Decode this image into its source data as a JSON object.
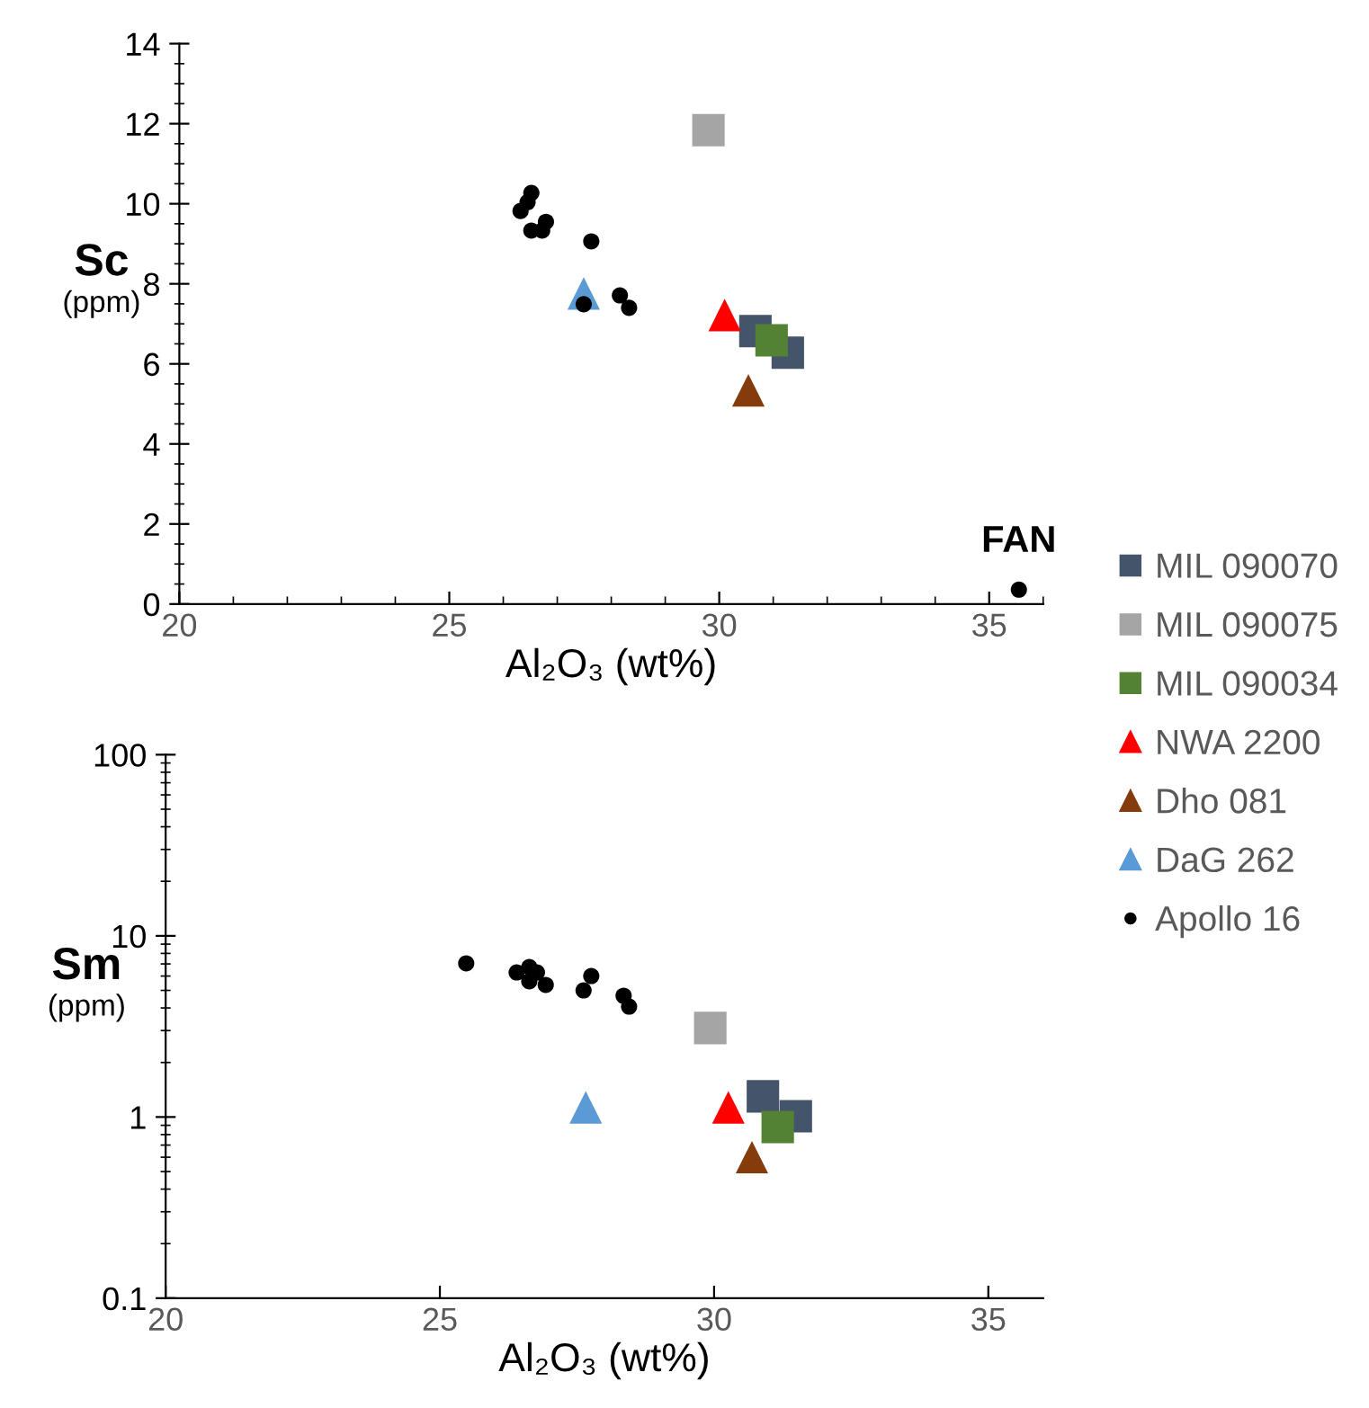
{
  "chart_data": [
    {
      "type": "scatter",
      "xlabel": "Al₂O₃ (wt%)",
      "ylabel": "Sc\n(ppm)",
      "xlim": [
        20,
        36
      ],
      "xticks": [
        20,
        25,
        30,
        35
      ],
      "ylim": [
        0,
        14
      ],
      "yticks": [
        0,
        2,
        4,
        6,
        8,
        10,
        12,
        14
      ],
      "grid": false,
      "legend": "right",
      "annotations": [
        {
          "text": "FAN",
          "x": 35.55,
          "y": 0.36
        }
      ],
      "series": [
        {
          "name": "MIL 090070",
          "color": "#44546a",
          "marker": "square",
          "x": [
            30.67,
            31.27
          ],
          "values": [
            6.82,
            6.28
          ]
        },
        {
          "name": "MIL 090075",
          "color": "#a5a5a5",
          "marker": "square",
          "x": [
            29.8
          ],
          "values": [
            11.84
          ]
        },
        {
          "name": "MIL 090034",
          "color": "#548235",
          "marker": "square",
          "x": [
            30.97
          ],
          "values": [
            6.59
          ]
        },
        {
          "name": "NWA 2200",
          "color": "#ff0000",
          "marker": "triangle",
          "x": [
            30.1
          ],
          "values": [
            7.22
          ]
        },
        {
          "name": "Dho 081",
          "color": "#843c0c",
          "marker": "triangle",
          "x": [
            30.54
          ],
          "values": [
            5.34
          ]
        },
        {
          "name": "DaG 262",
          "color": "#5b9bd5",
          "marker": "triangle",
          "x": [
            27.49
          ],
          "values": [
            7.76
          ]
        },
        {
          "name": "Apollo 16",
          "color": "#000000",
          "marker": "circle",
          "x": [
            26.52,
            26.45,
            26.32,
            26.79,
            26.52,
            26.72,
            27.63,
            27.49,
            28.16,
            28.33,
            35.55
          ],
          "values": [
            10.27,
            10.04,
            9.82,
            9.55,
            9.33,
            9.33,
            9.06,
            7.49,
            7.71,
            7.4,
            0.36
          ]
        }
      ]
    },
    {
      "type": "scatter",
      "xlabel": "Al₂O₃ (wt%)",
      "ylabel": "Sm\n(ppm)",
      "log": "y",
      "xlim": [
        20,
        36
      ],
      "xticks": [
        20,
        25,
        30,
        35
      ],
      "ylim": [
        0.1,
        100
      ],
      "yticks": [
        0.1,
        1,
        10,
        100
      ],
      "grid": false,
      "series": [
        {
          "color": "#44546a",
          "marker": "square",
          "x": [
            30.89,
            31.49
          ],
          "values": [
            1.3,
            1.01
          ]
        },
        {
          "color": "#a5a5a5",
          "marker": "square",
          "x": [
            29.93
          ],
          "values": [
            3.1
          ]
        },
        {
          "color": "#548235",
          "marker": "square",
          "x": [
            31.16
          ],
          "values": [
            0.88
          ]
        },
        {
          "color": "#ff0000",
          "marker": "triangle",
          "x": [
            30.26
          ],
          "values": [
            1.13
          ]
        },
        {
          "color": "#843c0c",
          "marker": "triangle",
          "x": [
            30.69
          ],
          "values": [
            0.6
          ]
        },
        {
          "color": "#5b9bd5",
          "marker": "triangle",
          "x": [
            27.66
          ],
          "values": [
            1.13
          ]
        },
        {
          "color": "#000000",
          "marker": "circle",
          "x": [
            25.48,
            26.4,
            26.63,
            26.77,
            26.63,
            26.93,
            27.76,
            27.62,
            28.35,
            28.45
          ],
          "values": [
            7.05,
            6.28,
            6.73,
            6.28,
            5.61,
            5.36,
            6.0,
            5.0,
            4.67,
            4.07
          ]
        }
      ]
    }
  ]
}
